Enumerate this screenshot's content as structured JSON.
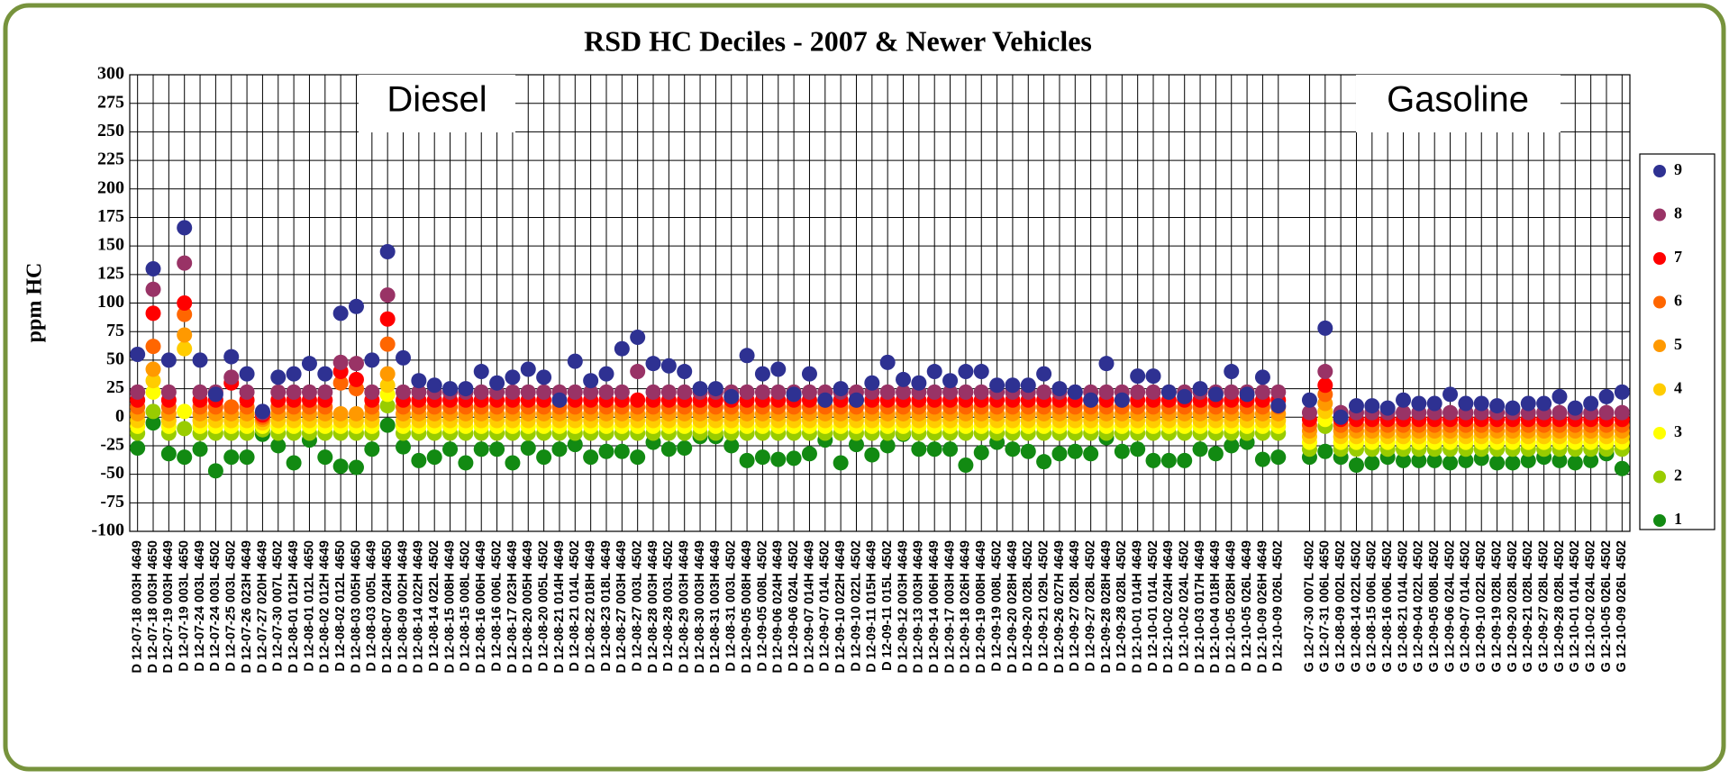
{
  "chart_data": {
    "type": "scatter",
    "title": "RSD HC Deciles - 2007 & Newer Vehicles",
    "y_label": "ppm HC",
    "annotations": [
      "Diesel",
      "Gasoline"
    ],
    "grid": true,
    "legend": "right",
    "ylim": [
      -100,
      300
    ],
    "yticks": [
      300,
      275,
      250,
      225,
      200,
      175,
      150,
      125,
      100,
      75,
      50,
      25,
      0,
      -25,
      -50,
      -75,
      -100
    ],
    "categories": [
      "D 12-07-18 003H 4649",
      "D 12-07-18 003H 4650",
      "D 12-07-19 003H 4649",
      "D 12-07-19 003L 4650",
      "D 12-07-24 003L 4649",
      "D 12-07-24 003L 4502",
      "D 12-07-25 003L 4502",
      "D 12-07-26 023H 4649",
      "D 12-07-27 020H 4649",
      "D 12-07-30 007L 4502",
      "D 12-08-01 012H 4649",
      "D 12-08-01 012L 4650",
      "D 12-08-02 012H 4649",
      "D 12-08-02 012L 4650",
      "D 12-08-03 005H 4650",
      "D 12-08-03 005L 4649",
      "D 12-08-07 024H 4650",
      "D 12-08-09 002H 4649",
      "D 12-08-14 022H 4649",
      "D 12-08-14 022L 4502",
      "D 12-08-15 008H 4649",
      "D 12-08-15 008L 4502",
      "D 12-08-16 006H 4649",
      "D 12-08-16 006L 4502",
      "D 12-08-17 023H 4649",
      "D 12-08-20 005H 4649",
      "D 12-08-20 005L 4502",
      "D 12-08-21 014H 4649",
      "D 12-08-21 014L 4502",
      "D 12-08-22 018H 4649",
      "D 12-08-23 018L 4649",
      "D 12-08-27 003H 4649",
      "D 12-08-27 003L 4502",
      "D 12-08-28 003H 4649",
      "D 12-08-28 003L 4502",
      "D 12-08-29 003H 4649",
      "D 12-08-30 003H 4649",
      "D 12-08-31 003H 4649",
      "D 12-08-31 003L 4502",
      "D 12-09-05 008H 4649",
      "D 12-09-05 008L 4502",
      "D 12-09-06 024H 4649",
      "D 12-09-06 024L 4502",
      "D 12-09-07 014H 4649",
      "D 12-09-07 014L 4502",
      "D 12-09-10 022H 4649",
      "D 12-09-10 022L 4502",
      "D 12-09-11 015H 4649",
      "D 12-09-11 015L 4502",
      "D 12-09-12 003H 4649",
      "D 12-09-13 003H 4649",
      "D 12-09-14 006H 4649",
      "D 12-09-17 003H 4649",
      "D 12-09-18 026H 4649",
      "D 12-09-19 008H 4649",
      "D 12-09-19 008L 4502",
      "D 12-09-20 028H 4649",
      "D 12-09-20 028L 4502",
      "D 12-09-21 029L 4502",
      "D 12-09-26 027H 4649",
      "D 12-09-27 028L 4649",
      "D 12-09-27 028L 4502",
      "D 12-09-28 028H 4649",
      "D 12-09-28 028L 4502",
      "D 12-10-01 014H 4649",
      "D 12-10-01 014L 4502",
      "D 12-10-02 024H 4649",
      "D 12-10-02 024L 4502",
      "D 12-10-03 017H 4649",
      "D 12-10-04 018H 4649",
      "D 12-10-05 028H 4649",
      "D 12-10-05 026L 4649",
      "D 12-10-09 026H 4649",
      "D 12-10-09 026L 4502",
      null,
      "G 12-07-30 007L 4502",
      "G 12-07-31 006L 4650",
      "G 12-08-09 002L 4502",
      "G 12-08-14 022L 4502",
      "G 12-08-15 006L 4502",
      "G 12-08-16 006L 4502",
      "G 12-08-21 014L 4502",
      "G 12-09-04 022L 4502",
      "G 12-09-05 008L 4502",
      "G 12-09-06 024L 4502",
      "G 12-09-07 014L 4502",
      "G 12-09-10 022L 4502",
      "G 12-09-19 028L 4502",
      "G 12-09-20 028L 4502",
      "G 12-09-21 028L 4502",
      "G 12-09-27 028L 4502",
      "G 12-09-28 028L 4502",
      "G 12-10-01 014L 4502",
      "G 12-10-02 024L 4502",
      "G 12-10-05 026L 4502",
      "G 12-10-09 026L 4502"
    ],
    "series": [
      {
        "name": "9",
        "color": "#2e3192",
        "values": [
          55,
          130,
          50,
          166,
          50,
          20,
          53,
          38,
          5,
          35,
          38,
          47,
          38,
          91,
          97,
          50,
          145,
          52,
          32,
          28,
          25,
          25,
          40,
          30,
          35,
          42,
          35,
          15,
          49,
          32,
          38,
          60,
          70,
          47,
          45,
          40,
          25,
          25,
          18,
          54,
          38,
          42,
          20,
          38,
          15,
          25,
          15,
          30,
          48,
          33,
          30,
          40,
          32,
          40,
          40,
          28,
          28,
          28,
          38,
          25,
          22,
          15,
          47,
          15,
          36,
          36,
          22,
          18,
          25,
          20,
          40,
          20,
          35,
          10,
          null,
          15,
          78,
          0,
          10,
          10,
          8,
          15,
          12,
          12,
          20,
          12,
          12,
          10,
          8,
          12,
          12,
          18,
          8,
          12,
          18,
          22
        ]
      },
      {
        "name": "8",
        "color": "#993366",
        "values": [
          22,
          112,
          22,
          135,
          22,
          22,
          35,
          22,
          4,
          22,
          22,
          22,
          22,
          48,
          47,
          22,
          107,
          22,
          22,
          22,
          22,
          22,
          22,
          22,
          22,
          22,
          22,
          22,
          22,
          22,
          22,
          22,
          40,
          22,
          22,
          22,
          22,
          22,
          22,
          22,
          22,
          22,
          22,
          22,
          22,
          22,
          22,
          22,
          22,
          22,
          22,
          22,
          22,
          22,
          22,
          22,
          22,
          22,
          22,
          22,
          22,
          22,
          22,
          22,
          22,
          22,
          22,
          22,
          22,
          22,
          22,
          22,
          22,
          22,
          null,
          4,
          40,
          4,
          4,
          4,
          4,
          4,
          4,
          4,
          4,
          4,
          4,
          4,
          4,
          4,
          4,
          4,
          4,
          4,
          4,
          4
        ]
      },
      {
        "name": "7",
        "color": "#ff0000",
        "values": [
          15,
          91,
          15,
          100,
          15,
          15,
          30,
          15,
          2,
          15,
          15,
          15,
          15,
          40,
          33,
          15,
          86,
          15,
          15,
          15,
          15,
          15,
          15,
          15,
          15,
          15,
          15,
          15,
          15,
          15,
          15,
          15,
          15,
          15,
          15,
          15,
          15,
          15,
          15,
          15,
          15,
          15,
          15,
          15,
          15,
          15,
          15,
          15,
          15,
          15,
          15,
          15,
          15,
          15,
          15,
          15,
          15,
          15,
          15,
          15,
          15,
          15,
          15,
          15,
          15,
          15,
          15,
          15,
          15,
          15,
          15,
          15,
          15,
          15,
          null,
          -2,
          28,
          -2,
          -2,
          -2,
          -2,
          -2,
          -2,
          -2,
          -2,
          -2,
          -2,
          -2,
          -2,
          -2,
          -2,
          -2,
          -2,
          -2,
          -2,
          -2
        ]
      },
      {
        "name": "6",
        "color": "#ff6600",
        "values": [
          9,
          62,
          9,
          90,
          9,
          9,
          9,
          9,
          0,
          9,
          9,
          9,
          9,
          30,
          25,
          9,
          64,
          9,
          9,
          9,
          9,
          9,
          9,
          9,
          9,
          9,
          9,
          9,
          9,
          9,
          9,
          9,
          9,
          9,
          9,
          9,
          9,
          9,
          9,
          9,
          9,
          9,
          9,
          9,
          9,
          9,
          9,
          9,
          9,
          9,
          9,
          9,
          9,
          9,
          9,
          9,
          9,
          9,
          9,
          9,
          9,
          9,
          9,
          9,
          9,
          9,
          9,
          9,
          9,
          9,
          9,
          9,
          9,
          9,
          null,
          -7,
          20,
          -7,
          -7,
          -7,
          -7,
          -7,
          -7,
          -7,
          -7,
          -7,
          -7,
          -7,
          -7,
          -7,
          -7,
          -7,
          -7,
          -7,
          -7,
          -7
        ]
      },
      {
        "name": "5",
        "color": "#ff9900",
        "values": [
          3,
          42,
          3,
          72,
          3,
          3,
          3,
          3,
          -2,
          3,
          3,
          3,
          3,
          3,
          3,
          3,
          38,
          3,
          3,
          3,
          3,
          3,
          3,
          3,
          3,
          3,
          3,
          3,
          3,
          3,
          3,
          3,
          3,
          3,
          3,
          3,
          3,
          3,
          3,
          3,
          3,
          3,
          3,
          3,
          3,
          3,
          3,
          3,
          3,
          3,
          3,
          3,
          3,
          3,
          3,
          3,
          3,
          3,
          3,
          3,
          3,
          3,
          3,
          3,
          3,
          3,
          3,
          3,
          3,
          3,
          3,
          3,
          3,
          3,
          null,
          -12,
          12,
          -12,
          -12,
          -12,
          -12,
          -12,
          -12,
          -12,
          -12,
          -12,
          -12,
          -12,
          -12,
          -12,
          -12,
          -12,
          -12,
          -12,
          -12,
          -12
        ]
      },
      {
        "name": "4",
        "color": "#ffcc00",
        "values": [
          -3,
          32,
          -3,
          60,
          -3,
          -3,
          -3,
          -3,
          -5,
          -3,
          -3,
          -3,
          -3,
          -3,
          -3,
          -3,
          28,
          -3,
          -3,
          -3,
          -3,
          -3,
          -3,
          -3,
          -3,
          -3,
          -3,
          -3,
          -3,
          -3,
          -3,
          -3,
          -3,
          -3,
          -3,
          -3,
          -3,
          -3,
          -3,
          -3,
          -3,
          -3,
          -3,
          -3,
          -3,
          -3,
          -3,
          -3,
          -3,
          -3,
          -3,
          -3,
          -3,
          -3,
          -3,
          -3,
          -3,
          -3,
          -3,
          -3,
          -3,
          -3,
          -3,
          -3,
          -3,
          -3,
          -3,
          -3,
          -3,
          -3,
          -3,
          -3,
          -3,
          -3,
          null,
          -17,
          5,
          -17,
          -17,
          -17,
          -17,
          -17,
          -17,
          -17,
          -17,
          -17,
          -17,
          -17,
          -17,
          -17,
          -17,
          -17,
          -17,
          -17,
          -17,
          -17
        ]
      },
      {
        "name": "3",
        "color": "#ffff00",
        "values": [
          -8,
          22,
          -8,
          5,
          -8,
          -8,
          -8,
          -8,
          -8,
          -8,
          -8,
          -8,
          -8,
          -8,
          -8,
          -8,
          20,
          -8,
          -8,
          -8,
          -8,
          -8,
          -8,
          -8,
          -8,
          -8,
          -8,
          -8,
          -8,
          -8,
          -8,
          -8,
          -8,
          -8,
          -8,
          -8,
          -8,
          -8,
          -8,
          -8,
          -8,
          -8,
          -8,
          -8,
          -8,
          -8,
          -8,
          -8,
          -8,
          -8,
          -8,
          -8,
          -8,
          -8,
          -8,
          -8,
          -8,
          -8,
          -8,
          -8,
          -8,
          -8,
          -8,
          -8,
          -8,
          -8,
          -8,
          -8,
          -8,
          -8,
          -8,
          -8,
          -8,
          -8,
          null,
          -22,
          -2,
          -22,
          -22,
          -22,
          -22,
          -22,
          -22,
          -22,
          -22,
          -22,
          -22,
          -22,
          -22,
          -22,
          -22,
          -22,
          -22,
          -22,
          -22,
          -22
        ]
      },
      {
        "name": "2",
        "color": "#99cc00",
        "values": [
          -14,
          5,
          -14,
          -10,
          -14,
          -14,
          -14,
          -14,
          -11,
          -14,
          -14,
          -14,
          -14,
          -14,
          -14,
          -14,
          10,
          -14,
          -14,
          -14,
          -14,
          -14,
          -14,
          -14,
          -14,
          -14,
          -14,
          -14,
          -14,
          -14,
          -14,
          -14,
          -14,
          -14,
          -14,
          -14,
          -14,
          -14,
          -14,
          -14,
          -14,
          -14,
          -14,
          -14,
          -14,
          -14,
          -14,
          -14,
          -14,
          -14,
          -14,
          -14,
          -14,
          -14,
          -14,
          -14,
          -14,
          -14,
          -14,
          -14,
          -14,
          -14,
          -14,
          -14,
          -14,
          -14,
          -14,
          -14,
          -14,
          -14,
          -14,
          -14,
          -14,
          -14,
          null,
          -28,
          -8,
          -28,
          -28,
          -28,
          -28,
          -28,
          -28,
          -28,
          -28,
          -28,
          -28,
          -28,
          -28,
          -28,
          -28,
          -28,
          -28,
          -28,
          -28,
          -28
        ]
      },
      {
        "name": "1",
        "color": "#128a12",
        "values": [
          -27,
          -5,
          -32,
          -35,
          -28,
          -47,
          -35,
          -35,
          -15,
          -25,
          -40,
          -20,
          -35,
          -43,
          -44,
          -28,
          -7,
          -26,
          -38,
          -35,
          -28,
          -40,
          -28,
          -28,
          -40,
          -27,
          -35,
          -28,
          -24,
          -35,
          -30,
          -30,
          -35,
          -22,
          -28,
          -27,
          -17,
          -17,
          -25,
          -38,
          -35,
          -37,
          -36,
          -32,
          -20,
          -40,
          -24,
          -33,
          -25,
          -15,
          -28,
          -28,
          -28,
          -42,
          -31,
          -22,
          -28,
          -30,
          -39,
          -32,
          -30,
          -32,
          -18,
          -30,
          -28,
          -38,
          -38,
          -38,
          -28,
          -32,
          -25,
          -22,
          -37,
          -35,
          null,
          -35,
          -30,
          -35,
          -42,
          -40,
          -35,
          -38,
          -38,
          -38,
          -40,
          -38,
          -36,
          -40,
          -40,
          -38,
          -35,
          -38,
          -40,
          -38,
          -32,
          -45
        ]
      }
    ]
  }
}
